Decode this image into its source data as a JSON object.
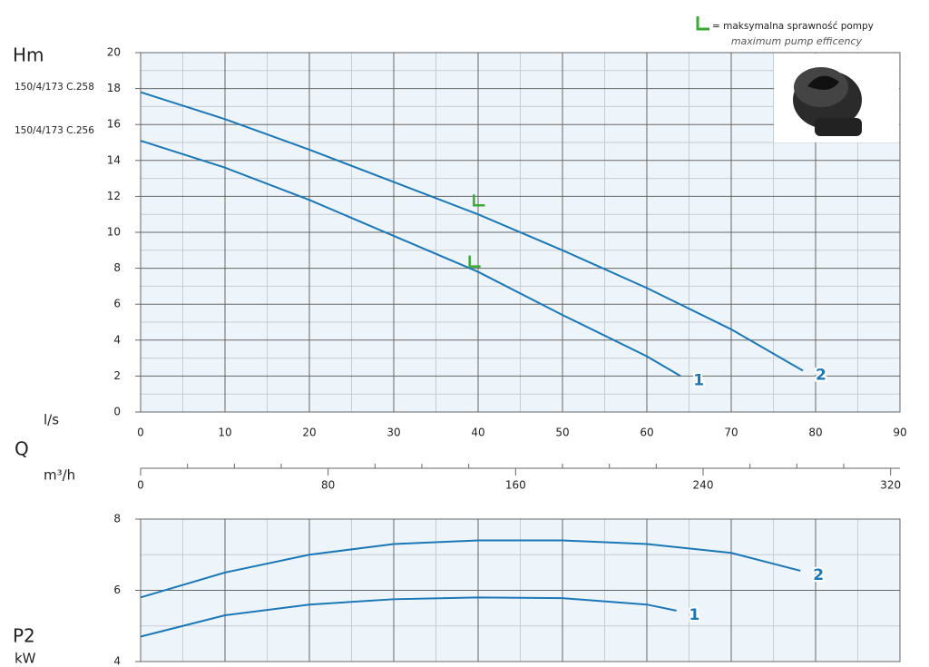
{
  "legend_note": {
    "text": "= maksymalna sprawność pompy",
    "subtext": "maximum pump efficency"
  },
  "chart_data": [
    {
      "type": "line",
      "y_label": "Hm",
      "x_label": "l/s",
      "model_labels": [
        "150/4/173 C.258",
        "150/4/173 C.256"
      ],
      "xlim": [
        0,
        90
      ],
      "xticks": [
        0,
        10,
        20,
        30,
        40,
        50,
        60,
        70,
        80,
        90
      ],
      "show_xtick_labels": true,
      "ylim": [
        0,
        20
      ],
      "yticks": [
        0,
        2,
        4,
        6,
        8,
        10,
        12,
        14,
        16,
        18,
        20
      ],
      "grid": true,
      "series": [
        {
          "name": "1",
          "color": "#1a78b8",
          "x": [
            0,
            10,
            20,
            30,
            40,
            50,
            60,
            64
          ],
          "values": [
            15.1,
            13.6,
            11.8,
            9.8,
            7.8,
            5.4,
            3.1,
            2.0
          ]
        },
        {
          "name": "2",
          "color": "#1a78b8",
          "x": [
            0,
            10,
            20,
            30,
            40,
            50,
            60,
            70,
            78.5
          ],
          "values": [
            17.8,
            16.3,
            14.6,
            12.8,
            11.0,
            9.0,
            6.9,
            4.6,
            2.3
          ]
        }
      ],
      "efficiency_color": "#3aaa35",
      "efficiency_points": [
        {
          "x": 39,
          "y": 8.1
        },
        {
          "x": 39.5,
          "y": 11.5
        }
      ]
    },
    {
      "type": "axis",
      "quantity_label": "Q",
      "unit_label": "m³/h",
      "xlim": [
        0,
        324
      ],
      "xticks": [
        0,
        80,
        160,
        240,
        320
      ],
      "minor_xticks": [
        20,
        40,
        60,
        100,
        120,
        140,
        180,
        200,
        220,
        260,
        280,
        300
      ]
    },
    {
      "type": "line",
      "y_label": "P2",
      "y_unit": "kW",
      "xlim": [
        0,
        90
      ],
      "xticks": [
        0,
        10,
        20,
        30,
        40,
        50,
        60,
        70,
        80,
        90
      ],
      "show_xtick_labels": false,
      "ylim": [
        4,
        8
      ],
      "yticks": [
        4,
        6,
        8
      ],
      "grid": true,
      "series": [
        {
          "name": "1",
          "color": "#1a78b8",
          "x": [
            0,
            10,
            20,
            30,
            40,
            50,
            60,
            63.5
          ],
          "values": [
            4.7,
            5.3,
            5.6,
            5.75,
            5.8,
            5.78,
            5.6,
            5.43
          ]
        },
        {
          "name": "2",
          "color": "#1a78b8",
          "x": [
            0,
            10,
            20,
            30,
            40,
            50,
            60,
            70,
            78.2
          ],
          "values": [
            5.8,
            6.5,
            7.0,
            7.3,
            7.4,
            7.4,
            7.3,
            7.05,
            6.55
          ]
        }
      ]
    }
  ]
}
